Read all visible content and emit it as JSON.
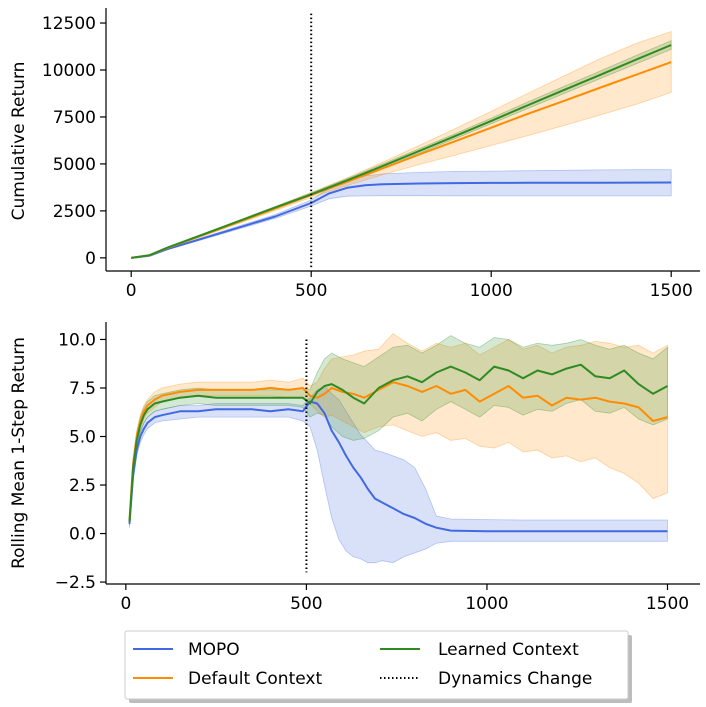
{
  "chart_data": [
    {
      "type": "line",
      "xlabel": "",
      "ylabel": "Cumulative Return",
      "xlim": [
        -70,
        1580
      ],
      "ylim": [
        -700,
        13300
      ],
      "xticks": [
        0,
        500,
        1000,
        1500
      ],
      "yticks": [
        0,
        2500,
        5000,
        7500,
        10000,
        12500
      ],
      "xtick_labels": [
        "0",
        "500",
        "1000",
        "1500"
      ],
      "ytick_labels": [
        "0",
        "2500",
        "5000",
        "7500",
        "10000",
        "12500"
      ],
      "grid": false,
      "vline": {
        "x": 500,
        "from": -600,
        "to": 13000
      },
      "series": [
        {
          "name": "MOPO",
          "color": "#4169e1",
          "x": [
            0,
            50,
            100,
            200,
            300,
            400,
            500,
            550,
            600,
            650,
            700,
            800,
            900,
            1000,
            1100,
            1200,
            1300,
            1400,
            1500
          ],
          "y": [
            0,
            110,
            460,
            1040,
            1620,
            2200,
            2920,
            3430,
            3730,
            3860,
            3920,
            3960,
            3980,
            3990,
            3995,
            4000,
            4000,
            4005,
            4010
          ],
          "lower": [
            0,
            100,
            430,
            980,
            1540,
            2100,
            2760,
            3150,
            3280,
            3300,
            3310,
            3310,
            3305,
            3300,
            3300,
            3300,
            3300,
            3300,
            3300
          ],
          "upper": [
            0,
            120,
            490,
            1100,
            1700,
            2300,
            3080,
            3700,
            4150,
            4360,
            4470,
            4550,
            4600,
            4620,
            4640,
            4660,
            4680,
            4690,
            4700
          ]
        },
        {
          "name": "Default Context",
          "color": "#ff8c00",
          "x": [
            0,
            50,
            100,
            200,
            300,
            400,
            500,
            600,
            700,
            800,
            900,
            1000,
            1100,
            1200,
            1300,
            1400,
            1500
          ],
          "y": [
            0,
            130,
            520,
            1220,
            1920,
            2620,
            3350,
            4050,
            4770,
            5500,
            6210,
            6930,
            7650,
            8340,
            9040,
            9730,
            10420
          ],
          "lower": [
            0,
            120,
            490,
            1160,
            1840,
            2520,
            3220,
            3850,
            4430,
            4970,
            5470,
            5980,
            6500,
            7030,
            7590,
            8160,
            8800
          ],
          "upper": [
            0,
            140,
            550,
            1280,
            2000,
            2720,
            3480,
            4260,
            5100,
            5980,
            6880,
            7800,
            8740,
            9660,
            10580,
            11400,
            12050
          ]
        },
        {
          "name": "Learned Context",
          "color": "#2e8b22",
          "x": [
            0,
            50,
            100,
            200,
            300,
            400,
            500,
            600,
            700,
            800,
            900,
            1000,
            1100,
            1200,
            1300,
            1400,
            1500
          ],
          "y": [
            0,
            135,
            540,
            1250,
            1960,
            2680,
            3380,
            4130,
            4900,
            5690,
            6480,
            7290,
            8110,
            8920,
            9720,
            10530,
            11330
          ],
          "lower": [
            0,
            130,
            520,
            1210,
            1910,
            2620,
            3310,
            4040,
            4790,
            5570,
            6350,
            7140,
            7940,
            8730,
            9520,
            10310,
            11100
          ],
          "upper": [
            0,
            140,
            560,
            1290,
            2010,
            2740,
            3450,
            4220,
            5010,
            5810,
            6610,
            7440,
            8280,
            9110,
            9920,
            10750,
            11560
          ]
        }
      ]
    },
    {
      "type": "line",
      "xlabel": "",
      "ylabel": "Rolling Mean 1-Step Return",
      "xlim": [
        -55,
        1590
      ],
      "ylim": [
        -2.6,
        10.9
      ],
      "xticks": [
        0,
        500,
        1000,
        1500
      ],
      "yticks": [
        -2.5,
        0.0,
        2.5,
        5.0,
        7.5,
        10.0
      ],
      "xtick_labels": [
        "0",
        "500",
        "1000",
        "1500"
      ],
      "ytick_labels": [
        "−2.5",
        "0.0",
        "2.5",
        "5.0",
        "7.5",
        "10.0"
      ],
      "grid": false,
      "vline": {
        "x": 500,
        "from": -2.0,
        "to": 10.0
      },
      "series": [
        {
          "name": "MOPO",
          "color": "#4169e1",
          "x": [
            10,
            20,
            30,
            40,
            50,
            60,
            80,
            100,
            150,
            200,
            250,
            300,
            350,
            400,
            450,
            490,
            510,
            530,
            550,
            570,
            590,
            610,
            630,
            650,
            670,
            690,
            710,
            740,
            770,
            800,
            830,
            860,
            900,
            1000,
            1100,
            1200,
            1300,
            1400,
            1500
          ],
          "y": [
            0.5,
            3.0,
            4.3,
            5.0,
            5.4,
            5.7,
            6.0,
            6.1,
            6.3,
            6.3,
            6.4,
            6.4,
            6.4,
            6.3,
            6.4,
            6.3,
            6.8,
            6.7,
            6.2,
            5.3,
            4.7,
            4.0,
            3.4,
            2.9,
            2.3,
            1.8,
            1.6,
            1.3,
            1.0,
            0.8,
            0.5,
            0.3,
            0.15,
            0.12,
            0.12,
            0.12,
            0.12,
            0.12,
            0.12
          ],
          "lower": [
            0.3,
            2.7,
            4.0,
            4.7,
            5.1,
            5.4,
            5.7,
            5.8,
            5.9,
            6.0,
            6.0,
            6.0,
            6.0,
            6.0,
            6.0,
            5.8,
            5.5,
            4.3,
            2.5,
            0.8,
            -0.3,
            -0.9,
            -1.2,
            -1.3,
            -1.5,
            -1.5,
            -1.4,
            -1.5,
            -1.2,
            -1.0,
            -0.8,
            -0.5,
            -0.4,
            -0.4,
            -0.4,
            -0.4,
            -0.4,
            -0.4,
            -0.4
          ],
          "upper": [
            0.7,
            3.3,
            4.6,
            5.3,
            5.7,
            6.0,
            6.3,
            6.4,
            6.6,
            6.6,
            6.7,
            6.7,
            6.7,
            6.7,
            6.7,
            6.6,
            7.0,
            7.4,
            7.6,
            7.2,
            6.9,
            6.3,
            5.7,
            5.1,
            4.7,
            4.3,
            4.2,
            4.0,
            3.8,
            3.4,
            2.3,
            0.9,
            0.75,
            0.72,
            0.7,
            0.7,
            0.7,
            0.7,
            0.7
          ]
        },
        {
          "name": "Default Context",
          "color": "#ff8c00",
          "x": [
            10,
            20,
            30,
            40,
            50,
            60,
            80,
            100,
            150,
            200,
            250,
            300,
            350,
            400,
            450,
            490,
            510,
            530,
            550,
            570,
            600,
            630,
            660,
            700,
            740,
            780,
            820,
            860,
            900,
            940,
            980,
            1020,
            1060,
            1100,
            1140,
            1180,
            1220,
            1260,
            1300,
            1340,
            1380,
            1420,
            1460,
            1500
          ],
          "y": [
            0.7,
            3.6,
            5.0,
            5.8,
            6.3,
            6.6,
            6.9,
            7.1,
            7.3,
            7.4,
            7.4,
            7.4,
            7.4,
            7.5,
            7.4,
            7.5,
            7.1,
            7.0,
            7.2,
            7.5,
            7.3,
            7.2,
            7.0,
            7.4,
            7.8,
            7.6,
            7.3,
            7.6,
            7.2,
            7.4,
            6.8,
            7.2,
            7.6,
            7.0,
            7.1,
            6.6,
            7.0,
            6.9,
            7.0,
            6.8,
            6.7,
            6.5,
            5.8,
            6.0
          ],
          "lower": [
            0.5,
            3.3,
            4.6,
            5.4,
            5.9,
            6.2,
            6.5,
            6.8,
            7.0,
            7.1,
            7.1,
            7.1,
            7.1,
            7.1,
            7.0,
            7.0,
            6.7,
            6.3,
            6.0,
            6.1,
            5.8,
            5.5,
            5.2,
            5.5,
            5.6,
            5.3,
            5.0,
            5.2,
            4.8,
            4.9,
            4.5,
            4.4,
            4.7,
            4.2,
            4.3,
            3.9,
            4.0,
            3.7,
            3.9,
            3.4,
            3.1,
            2.6,
            1.8,
            2.1
          ],
          "upper": [
            0.9,
            3.9,
            5.3,
            6.1,
            6.6,
            6.9,
            7.3,
            7.5,
            7.7,
            7.8,
            7.8,
            7.8,
            7.8,
            7.9,
            7.8,
            8.0,
            7.6,
            7.8,
            8.5,
            9.0,
            9.1,
            9.2,
            9.4,
            9.5,
            10.3,
            9.8,
            9.4,
            9.8,
            9.6,
            9.8,
            9.2,
            9.6,
            10.0,
            9.5,
            9.7,
            9.3,
            9.6,
            9.7,
            9.9,
            9.8,
            9.6,
            9.7,
            9.3,
            9.7
          ]
        },
        {
          "name": "Learned Context",
          "color": "#2e8b22",
          "x": [
            10,
            20,
            30,
            40,
            50,
            60,
            80,
            100,
            150,
            200,
            250,
            300,
            350,
            400,
            450,
            490,
            510,
            530,
            550,
            570,
            600,
            630,
            660,
            700,
            740,
            780,
            820,
            860,
            900,
            940,
            980,
            1020,
            1060,
            1100,
            1140,
            1180,
            1220,
            1260,
            1300,
            1340,
            1380,
            1420,
            1460,
            1500
          ],
          "y": [
            0.6,
            3.4,
            4.8,
            5.6,
            6.1,
            6.4,
            6.7,
            6.8,
            7.0,
            7.1,
            7.0,
            7.0,
            7.0,
            7.0,
            7.0,
            7.0,
            6.7,
            7.3,
            7.6,
            7.7,
            7.4,
            7.0,
            6.7,
            7.5,
            7.9,
            8.1,
            7.8,
            8.3,
            8.6,
            8.3,
            7.9,
            8.6,
            8.4,
            8.0,
            8.4,
            8.2,
            8.5,
            8.7,
            8.1,
            8.0,
            8.4,
            7.7,
            7.2,
            7.6
          ],
          "lower": [
            0.4,
            3.1,
            4.4,
            5.2,
            5.7,
            6.0,
            6.3,
            6.4,
            6.6,
            6.7,
            6.6,
            6.6,
            6.6,
            6.6,
            6.6,
            6.5,
            6.0,
            6.2,
            6.1,
            5.5,
            5.0,
            4.8,
            4.9,
            5.3,
            6.0,
            6.2,
            5.8,
            6.4,
            6.8,
            6.4,
            6.0,
            6.6,
            6.5,
            6.1,
            6.4,
            6.3,
            6.7,
            6.9,
            6.3,
            6.2,
            6.5,
            5.9,
            5.6,
            5.9
          ],
          "upper": [
            0.8,
            3.7,
            5.2,
            6.0,
            6.5,
            6.8,
            7.1,
            7.2,
            7.4,
            7.5,
            7.4,
            7.4,
            7.4,
            7.4,
            7.4,
            7.5,
            7.4,
            8.3,
            9.0,
            9.3,
            9.0,
            8.8,
            8.6,
            9.1,
            9.6,
            9.7,
            9.3,
            9.7,
            10.2,
            9.8,
            9.6,
            10.1,
            10.0,
            9.6,
            9.8,
            9.7,
            9.8,
            10.0,
            9.7,
            9.5,
            9.7,
            9.3,
            9.0,
            9.6
          ]
        }
      ]
    }
  ],
  "legend": {
    "location": "bottom-center",
    "columns": 2,
    "entries": [
      {
        "label": "MOPO",
        "color": "#4169e1",
        "style": "solid"
      },
      {
        "label": "Default Context",
        "color": "#ff8c00",
        "style": "solid"
      },
      {
        "label": "Learned Context",
        "color": "#2e8b22",
        "style": "solid"
      },
      {
        "label": "Dynamics Change",
        "color": "#000000",
        "style": "dotted"
      }
    ]
  }
}
